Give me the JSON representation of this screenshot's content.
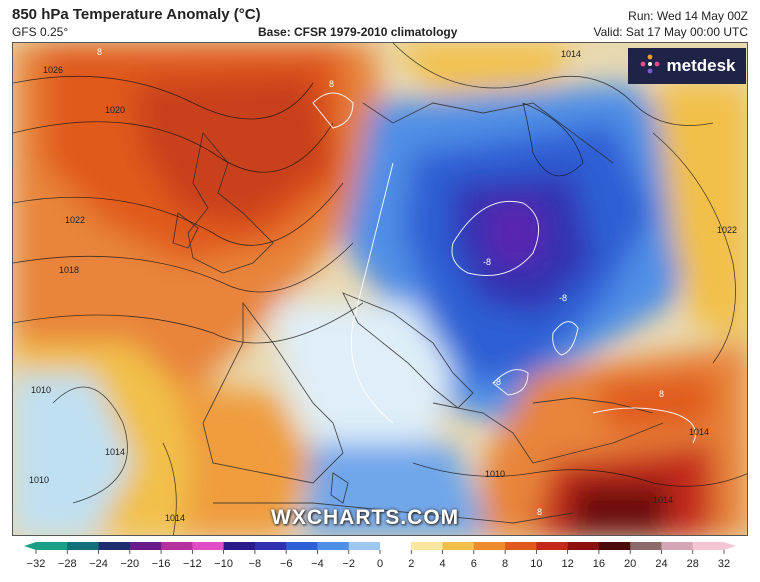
{
  "header": {
    "title": "850 hPa Temperature Anomaly (°C)",
    "model": "GFS 0.25°",
    "base": "Base: CFSR 1979-2010 climatology",
    "run": "Run: Wed 14 May 00Z",
    "valid": "Valid: Sat 17 May 00:00 UTC"
  },
  "brand": {
    "name": "metdesk",
    "icon": "metdesk-logo-icon"
  },
  "watermark": "WXCHARTS.COM",
  "colorbar": {
    "ticks": [
      "-32",
      "-28",
      "-24",
      "-20",
      "-16",
      "-12",
      "-10",
      "-8",
      "-6",
      "-4",
      "-2",
      "0",
      "2",
      "4",
      "6",
      "8",
      "10",
      "12",
      "16",
      "20",
      "24",
      "28",
      "32"
    ],
    "colors": [
      "#1a9e86",
      "#11707a",
      "#1d2d6e",
      "#6b1a8a",
      "#b3329e",
      "#e04ec6",
      "#2a1a8a",
      "#3030b0",
      "#2f5fd4",
      "#4f8fe6",
      "#9fc8f0",
      "#ffffff",
      "#f9e6a0",
      "#f2c04a",
      "#ec8c2c",
      "#e05a1e",
      "#c42a1a",
      "#8c1010",
      "#4a0a0a",
      "#8a6a6a",
      "#d7a6b6",
      "#f4c6d4"
    ]
  },
  "isobar_labels": [
    "1026",
    "1020",
    "1022",
    "1018",
    "1014",
    "1010",
    "1014",
    "1014",
    "1010",
    "1014",
    "1010",
    "1022",
    "1014"
  ],
  "anomaly_labels": [
    "8",
    "8",
    "-8",
    "-8",
    "-8",
    "8",
    "8"
  ]
}
